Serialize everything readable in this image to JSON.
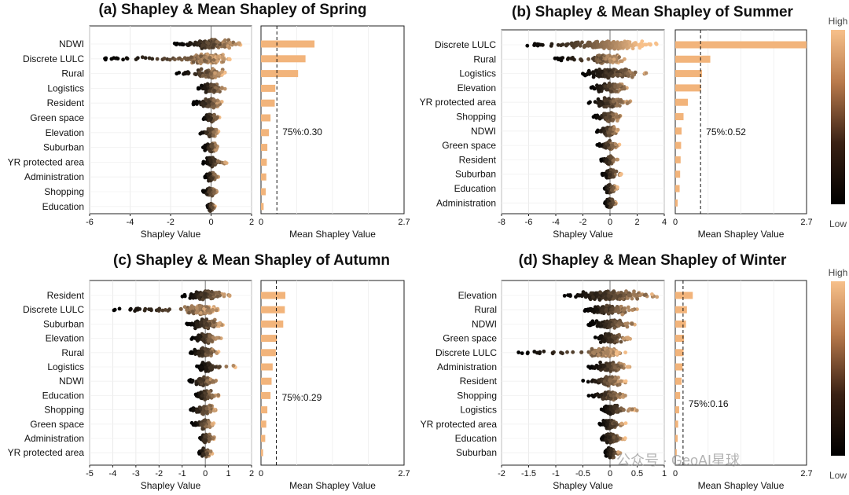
{
  "colorbar": {
    "high_label": "High",
    "low_label": "Low",
    "low_color": "#000000",
    "high_color": "#f7c08a"
  },
  "watermark": "公众号 · GeoAI星球",
  "chart_data": [
    {
      "type": "beeswarm+bar",
      "title": "(a) Shapley & Mean Shapley of Spring",
      "xlabel": "Shapley Value",
      "bar_xlabel": "Mean Shapley Value",
      "xlim": [
        -6,
        2
      ],
      "xticks": [
        "-6",
        "-4",
        "-2",
        "0",
        "2"
      ],
      "bar_xlim": [
        0,
        2.7
      ],
      "bar_xticks": [
        "0",
        "2.7"
      ],
      "percentile_label": "75%:0.30",
      "percentile_value": 0.3,
      "features": [
        "NDWI",
        "Discrete LULC",
        "Rural",
        "Logistics",
        "Resident",
        "Green space",
        "Elevation",
        "Suburban",
        "YR protected area",
        "Administration",
        "Shopping",
        "Education"
      ],
      "swarm_ranges": [
        [
          -1.8,
          1.5
        ],
        [
          -5.3,
          1.0
        ],
        [
          -1.7,
          0.7
        ],
        [
          -0.7,
          0.8
        ],
        [
          -0.9,
          0.6
        ],
        [
          -0.4,
          0.5
        ],
        [
          -0.6,
          0.4
        ],
        [
          -0.4,
          0.4
        ],
        [
          -0.4,
          0.8
        ],
        [
          -0.3,
          0.4
        ],
        [
          -0.4,
          0.3
        ],
        [
          -0.2,
          0.2
        ]
      ],
      "mean_shapley": [
        1.01,
        0.84,
        0.7,
        0.27,
        0.26,
        0.18,
        0.15,
        0.12,
        0.11,
        0.1,
        0.09,
        0.05
      ]
    },
    {
      "type": "beeswarm+bar",
      "title": "(b) Shapley & Mean Shapley of Summer",
      "xlabel": "Shapley Value",
      "bar_xlabel": "Mean Shapley Value",
      "xlim": [
        -8,
        4
      ],
      "xticks": [
        "-8",
        "-6",
        "-4",
        "-2",
        "0",
        "2",
        "4"
      ],
      "bar_xlim": [
        0,
        2.7
      ],
      "bar_xticks": [
        "0",
        "2.7"
      ],
      "percentile_label": "75%:0.52",
      "percentile_value": 0.52,
      "features": [
        "Discrete LULC",
        "Rural",
        "Logistics",
        "Elevation",
        "YR protected area",
        "Shopping",
        "NDWI",
        "Green space",
        "Resident",
        "Suburban",
        "Education",
        "Administration"
      ],
      "swarm_ranges": [
        [
          -6.5,
          3.5
        ],
        [
          -4.2,
          1.2
        ],
        [
          -2.3,
          3.0
        ],
        [
          -1.5,
          1.5
        ],
        [
          -1.6,
          1.5
        ],
        [
          -1.3,
          0.9
        ],
        [
          -1.1,
          0.7
        ],
        [
          -1.0,
          0.7
        ],
        [
          -0.7,
          0.6
        ],
        [
          -0.6,
          0.9
        ],
        [
          -0.5,
          0.6
        ],
        [
          -0.4,
          0.5
        ]
      ],
      "mean_shapley": [
        2.7,
        0.72,
        0.55,
        0.53,
        0.26,
        0.17,
        0.13,
        0.12,
        0.11,
        0.1,
        0.09,
        0.05
      ]
    },
    {
      "type": "beeswarm+bar",
      "title": "(c) Shapley & Mean Shapley of Autumn",
      "xlabel": "Shapley Value",
      "bar_xlabel": "Mean Shapley Value",
      "xlim": [
        -5,
        2
      ],
      "xticks": [
        "-5",
        "-4",
        "-3",
        "-2",
        "-1",
        "0",
        "1",
        "2"
      ],
      "bar_xlim": [
        0,
        2.7
      ],
      "bar_xticks": [
        "0",
        "2.7"
      ],
      "percentile_label": "75%:0.29",
      "percentile_value": 0.29,
      "features": [
        "Resident",
        "Discrete LULC",
        "Suburban",
        "Elevation",
        "Rural",
        "Logistics",
        "NDWI",
        "Education",
        "Shopping",
        "Green space",
        "Administration",
        "YR protected area"
      ],
      "swarm_ranges": [
        [
          -1.0,
          1.1
        ],
        [
          -4.0,
          0.6
        ],
        [
          -0.8,
          0.8
        ],
        [
          -0.6,
          0.7
        ],
        [
          -0.7,
          0.6
        ],
        [
          -0.4,
          1.3
        ],
        [
          -0.7,
          0.5
        ],
        [
          -0.5,
          0.6
        ],
        [
          -0.7,
          0.5
        ],
        [
          -0.6,
          0.4
        ],
        [
          -0.3,
          0.4
        ],
        [
          -0.3,
          0.3
        ]
      ],
      "mean_shapley": [
        0.46,
        0.45,
        0.42,
        0.3,
        0.28,
        0.22,
        0.2,
        0.18,
        0.12,
        0.1,
        0.08,
        0.04
      ]
    },
    {
      "type": "beeswarm+bar",
      "title": "(d) Shapley & Mean Shapley of Winter",
      "xlabel": "Shapley Value",
      "bar_xlabel": "Mean Shapley Value",
      "xlim": [
        -2,
        1
      ],
      "xticks": [
        "-2",
        "-1.5",
        "-1",
        "-0.5",
        "0",
        "0.5",
        "1"
      ],
      "bar_xlim": [
        0,
        2.7
      ],
      "bar_xticks": [
        "0",
        "2.7"
      ],
      "percentile_label": "75%:0.16",
      "percentile_value": 0.16,
      "features": [
        "Elevation",
        "Rural",
        "NDWI",
        "Green space",
        "Discrete LULC",
        "Administration",
        "Resident",
        "Shopping",
        "Logistics",
        "YR protected area",
        "Education",
        "Suburban"
      ],
      "swarm_ranges": [
        [
          -0.9,
          0.9
        ],
        [
          -0.5,
          0.5
        ],
        [
          -0.4,
          0.5
        ],
        [
          -0.3,
          0.4
        ],
        [
          -1.7,
          0.3
        ],
        [
          -0.4,
          0.4
        ],
        [
          -0.5,
          0.3
        ],
        [
          -0.4,
          0.3
        ],
        [
          -0.2,
          0.5
        ],
        [
          -0.2,
          0.3
        ],
        [
          -0.2,
          0.3
        ],
        [
          -0.1,
          0.2
        ]
      ],
      "mean_shapley": [
        0.36,
        0.24,
        0.22,
        0.18,
        0.17,
        0.15,
        0.13,
        0.1,
        0.08,
        0.06,
        0.05,
        0.03
      ]
    }
  ]
}
